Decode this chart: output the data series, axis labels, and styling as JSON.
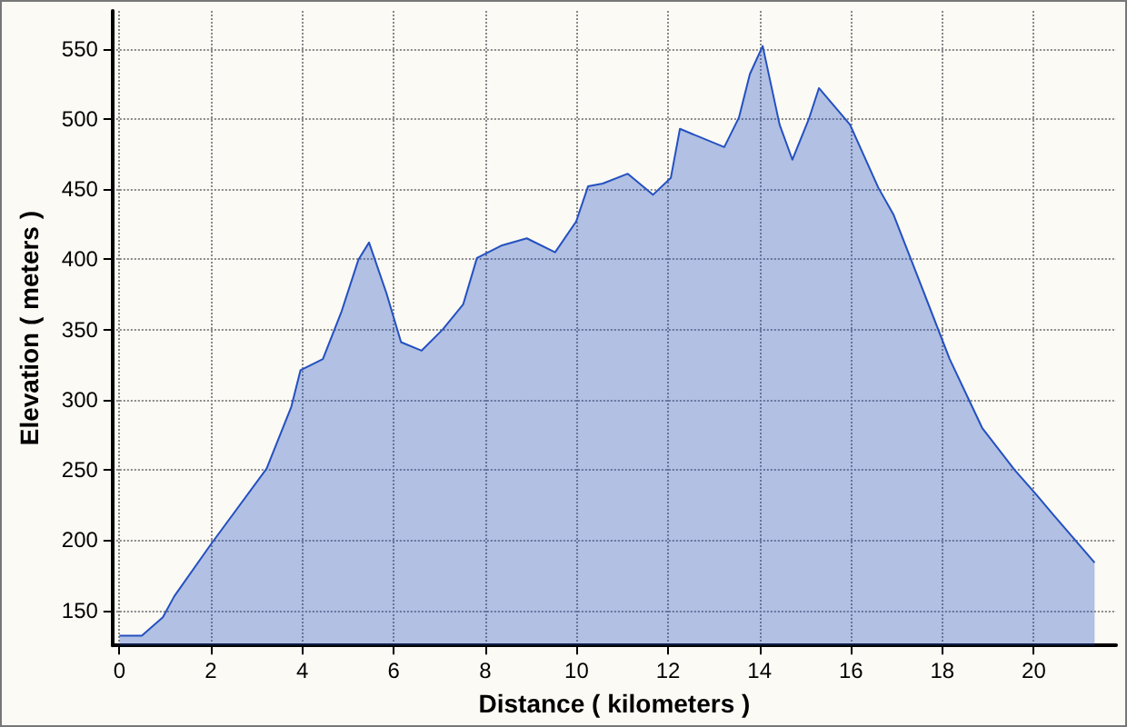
{
  "chart_data": {
    "type": "area",
    "xlabel": "Distance ( kilometers )",
    "ylabel": "Elevation ( meters )",
    "x": [
      0,
      0.49,
      0.95,
      1.2,
      2,
      3.22,
      3.76,
      3.96,
      4.45,
      4.86,
      5.23,
      5.46,
      5.84,
      6.16,
      6.61,
      7.07,
      7.52,
      7.82,
      8.37,
      8.91,
      9.53,
      9.99,
      10.25,
      10.57,
      11.12,
      11.67,
      12.06,
      12.26,
      13.23,
      13.55,
      13.79,
      14.07,
      14.44,
      14.72,
      15.08,
      15.3,
      15.98,
      16.6,
      16.93,
      17.29,
      18.16,
      18.87,
      19.58,
      20.04,
      20.43,
      21.33
    ],
    "series": [
      {
        "color": "#2450c0",
        "values": [
          132,
          132,
          145,
          160,
          197,
          251,
          295,
          321,
          329,
          363,
          400,
          412,
          376,
          341,
          335,
          350,
          368,
          401,
          410,
          415,
          405,
          427,
          452,
          454,
          461,
          446,
          458,
          493,
          480,
          501,
          532,
          552,
          496,
          471,
          500,
          522,
          496,
          451,
          432,
          402,
          329,
          280,
          250,
          233,
          218,
          184
        ]
      }
    ],
    "xlim": [
      -0.15,
      21.8
    ],
    "xticks": [
      0,
      2,
      4,
      6,
      8,
      10,
      12,
      14,
      16,
      18,
      20
    ],
    "ylim": [
      125,
      577
    ],
    "yticks": [
      150,
      200,
      250,
      300,
      350,
      400,
      450,
      500,
      550
    ],
    "grid": true,
    "marker": "none",
    "line_style": "solid"
  }
}
